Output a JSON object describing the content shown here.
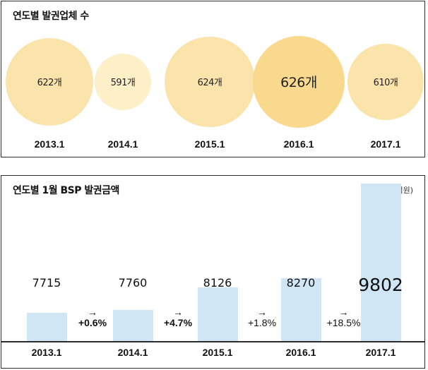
{
  "chart_data": [
    {
      "type": "bubble",
      "title": "연도별 발권업체 수",
      "categories": [
        "2013.1",
        "2014.1",
        "2015.1",
        "2016.1",
        "2017.1"
      ],
      "values": [
        622,
        591,
        624,
        626,
        610
      ],
      "value_labels": [
        "622개",
        "591개",
        "624개",
        "626개",
        "610개"
      ],
      "colors": [
        "#fbe3ac",
        "#fdefc8",
        "#fbe3ac",
        "#f9d98e",
        "#fbe3ac"
      ]
    },
    {
      "type": "bar",
      "title": "연도별 1월 BSP 발권금액",
      "unit_note": "(단위: 억원)",
      "categories": [
        "2013.1",
        "2014.1",
        "2015.1",
        "2016.1",
        "2017.1"
      ],
      "values": [
        7715,
        7760,
        8126,
        8270,
        9802
      ],
      "value_labels": [
        "7715",
        "7760",
        "8126",
        "8270",
        "9802"
      ],
      "growth": [
        {
          "arrow": "→",
          "label": "+0.6%",
          "bold": true
        },
        {
          "arrow": "→",
          "label": "+4.7%",
          "bold": true
        },
        {
          "arrow": "→",
          "label": "+1.8%",
          "bold": false
        },
        {
          "arrow": "→",
          "label": "+18.5%",
          "bold": false
        }
      ],
      "bar_color": "#d0e6f5"
    }
  ]
}
